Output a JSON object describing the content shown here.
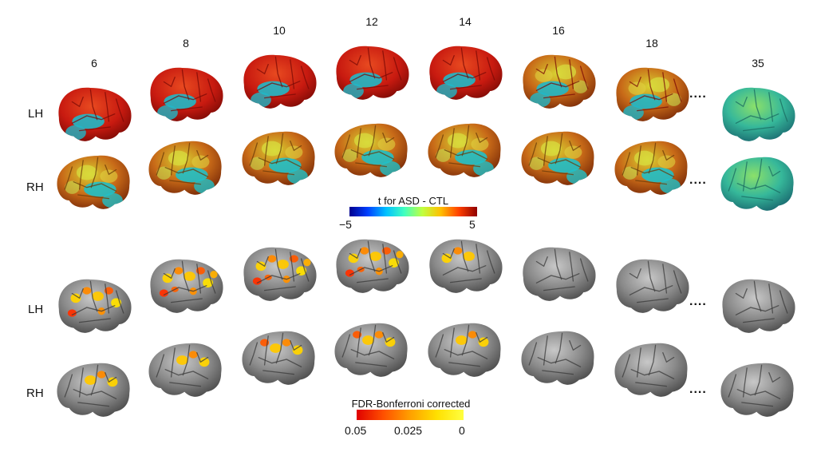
{
  "hemispheres": {
    "top_lh": "LH",
    "top_rh": "RH",
    "bottom_lh": "LH",
    "bottom_rh": "RH"
  },
  "ages": [
    "6",
    "8",
    "10",
    "12",
    "14",
    "16",
    "18",
    "35"
  ],
  "ellipsis": "....",
  "tmap_colorbar": {
    "title": "t for ASD - CTL",
    "min_label": "−5",
    "max_label": "5",
    "colors": [
      "#00008f",
      "#0040ff",
      "#00c0ff",
      "#40ffc0",
      "#c0ff40",
      "#ffc000",
      "#ff4000",
      "#8f0000"
    ]
  },
  "fdr_colorbar": {
    "title": "FDR-Bonferroni corrected",
    "tick_left": "0.05",
    "tick_mid": "0.025",
    "tick_right": "0",
    "colors": [
      "#e00000",
      "#ff5000",
      "#ffa000",
      "#ffe000",
      "#ffff40"
    ]
  },
  "brain_colors": {
    "gray_base": "#7a7a7a",
    "teal_base": "#2bb8a8"
  }
}
